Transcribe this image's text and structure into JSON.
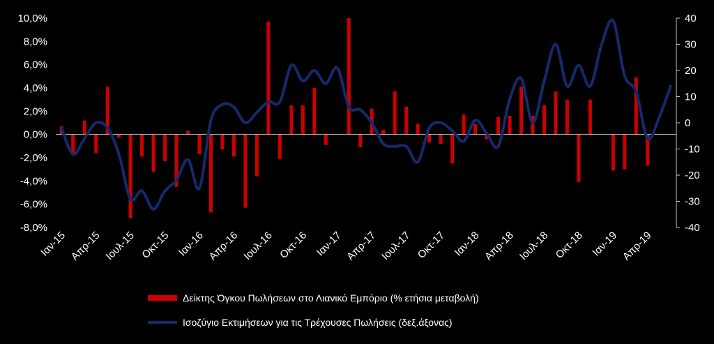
{
  "chart_data": {
    "type": "bar+line",
    "x_labels": [
      "Ιαν-15",
      "Απρ-15",
      "Ιουλ-15",
      "Οκτ-15",
      "Ιαν-16",
      "Απρ-16",
      "Ιουλ-16",
      "Οκτ-16",
      "Ιαν-17",
      "Απρ-17",
      "Ιουλ-17",
      "Οκτ-17",
      "Ιαν-18",
      "Απρ-18",
      "Ιουλ-18",
      "Οκτ-18",
      "Ιαν-19",
      "Απρ-19"
    ],
    "y_left": {
      "min": -8,
      "max": 10,
      "step": 2,
      "tick_labels": [
        "-8,0%",
        "-6,0%",
        "-4,0%",
        "-2,0%",
        "0,0%",
        "2,0%",
        "4,0%",
        "6,0%",
        "8,0%",
        "10,0%"
      ]
    },
    "y_right": {
      "min": -40,
      "max": 40,
      "step": 10,
      "tick_labels": [
        "-40",
        "-30",
        "-20",
        "-10",
        "0",
        "10",
        "20",
        "30",
        "40"
      ]
    },
    "series": [
      {
        "name": "Δείκτης Όγκου Πωλήσεων στο Λιανικό Εμπόριο (% ετήσια μεταβολή)",
        "kind": "bar",
        "axis": "left",
        "color": "#cc0000",
        "values": [
          0.7,
          -1.6,
          1.2,
          -1.6,
          4.1,
          -0.3,
          -7.2,
          -1.9,
          -3.2,
          -2.3,
          -4.5,
          0.3,
          -1.7,
          -6.7,
          -1.3,
          -1.9,
          -6.3,
          -3.6,
          9.7,
          -2.1,
          2.5,
          2.5,
          4.0,
          -0.9,
          null,
          10.0,
          -1.1,
          2.2,
          0.4,
          3.7,
          2.4,
          0.9,
          -0.7,
          -0.8,
          -2.5,
          1.7,
          0.9,
          -0.4,
          1.5,
          1.6,
          4.1,
          1.6,
          2.5,
          3.7,
          3.0,
          -4.1,
          3.0,
          null,
          -3.1,
          -3.0,
          4.9,
          -2.7,
          null,
          null
        ]
      },
      {
        "name": "Ισοζύγιο Εκτιμήσεων για τις Τρέχουσες Πωλήσεις (δεξ.άξονας)",
        "kind": "line",
        "axis": "right",
        "color": "#142a6b",
        "values": [
          -2,
          -12,
          -6,
          0,
          -2,
          -12,
          -29,
          -26,
          -33,
          -26,
          -22,
          -14,
          -25,
          1,
          7,
          6,
          0,
          4,
          8,
          8,
          22,
          16,
          20,
          15,
          21,
          6,
          5,
          0,
          -8,
          -9,
          -9,
          -15,
          -2,
          0,
          -3,
          -7,
          1,
          -4,
          -9,
          9,
          17,
          0,
          16,
          30,
          14,
          22,
          14,
          30,
          39,
          18,
          12,
          -6,
          2,
          14
        ]
      }
    ]
  }
}
